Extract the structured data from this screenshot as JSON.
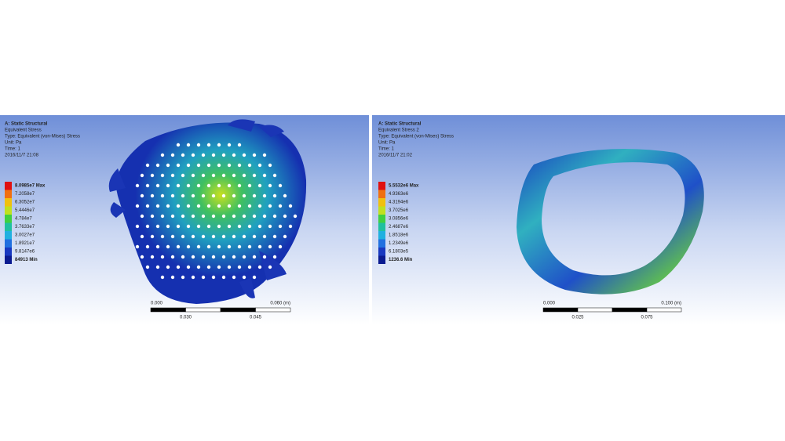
{
  "panels": [
    {
      "header": [
        "A: Static Structural",
        "Equivalent Stress",
        "Type: Equivalent (von-Mises) Stress",
        "Unit: Pa",
        "Time: 1",
        "2016/11/7 21:08"
      ],
      "legend": [
        "8.0985e7 Max",
        "7.2058e7",
        "6.3052e7",
        "5.4446e7",
        "4.784e7",
        "3.7633e7",
        "3.0027e7",
        "1.8921e7",
        "9.8147e6",
        "84913 Min"
      ],
      "scale_top": [
        "0.000",
        "0.060 (m)"
      ],
      "scale_bottom": [
        "0.030",
        "0.045"
      ]
    },
    {
      "header": [
        "A: Static Structural",
        "Equivalent Stress 2",
        "Type: Equivalent (von-Mises) Stress",
        "Unit: Pa",
        "Time: 1",
        "2016/11/7 21:02"
      ],
      "legend": [
        "5.5532e6 Max",
        "4.9363e6",
        "4.3194e6",
        "3.7025e6",
        "3.0856e6",
        "2.4687e6",
        "1.8518e6",
        "1.2349e6",
        "6.1803e5",
        "1236.6 Min"
      ],
      "scale_top": [
        "0.000",
        "0.100 (m)"
      ],
      "scale_bottom": [
        "0.025",
        "0.075"
      ]
    }
  ]
}
